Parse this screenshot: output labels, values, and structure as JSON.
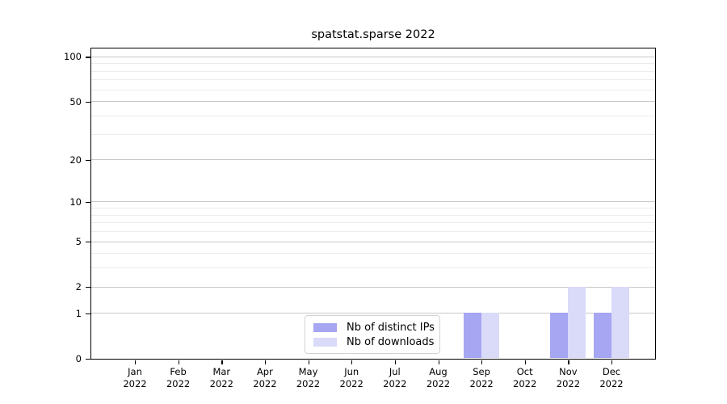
{
  "figure": {
    "background": "#ffffff"
  },
  "chart_data": {
    "type": "bar",
    "title": "spatstat.sparse 2022",
    "xlabel": "",
    "ylabel": "",
    "categories": [
      "Jan 2022",
      "Feb 2022",
      "Mar 2022",
      "Apr 2022",
      "May 2022",
      "Jun 2022",
      "Jul 2022",
      "Aug 2022",
      "Sep 2022",
      "Oct 2022",
      "Nov 2022",
      "Dec 2022"
    ],
    "series": [
      {
        "name": "Nb of distinct IPs",
        "color": "#a6a6f3",
        "values": [
          0,
          0,
          0,
          0,
          0,
          0,
          0,
          0,
          1,
          0,
          1,
          1
        ]
      },
      {
        "name": "Nb of downloads",
        "color": "#dadaf9",
        "values": [
          0,
          0,
          0,
          0,
          0,
          0,
          0,
          0,
          1,
          0,
          2,
          2
        ]
      }
    ],
    "yscale": "log1p",
    "y_ticks": [
      0,
      1,
      2,
      5,
      10,
      20,
      50,
      100
    ],
    "y_minor_gridlines": [
      3,
      4,
      6,
      7,
      8,
      9,
      30,
      40,
      60,
      70,
      80,
      90
    ],
    "ylim": [
      0,
      115
    ],
    "grid": "horizontal",
    "legend_position": "lower center, inside axes",
    "bar_layout": "paired; distinct-IPs bar left of month tick, downloads bar right of month tick"
  },
  "legend": {
    "items": [
      {
        "label": "Nb of distinct IPs",
        "swatch_color": "#a6a6f3"
      },
      {
        "label": "Nb of downloads",
        "swatch_color": "#dadaf9"
      }
    ]
  },
  "colors": {
    "major_gridline": "#c8c8c8",
    "minor_gridline": "#ececec",
    "axis_frame": "#000000",
    "text": "#000000",
    "legend_border": "#d2d2d2"
  }
}
